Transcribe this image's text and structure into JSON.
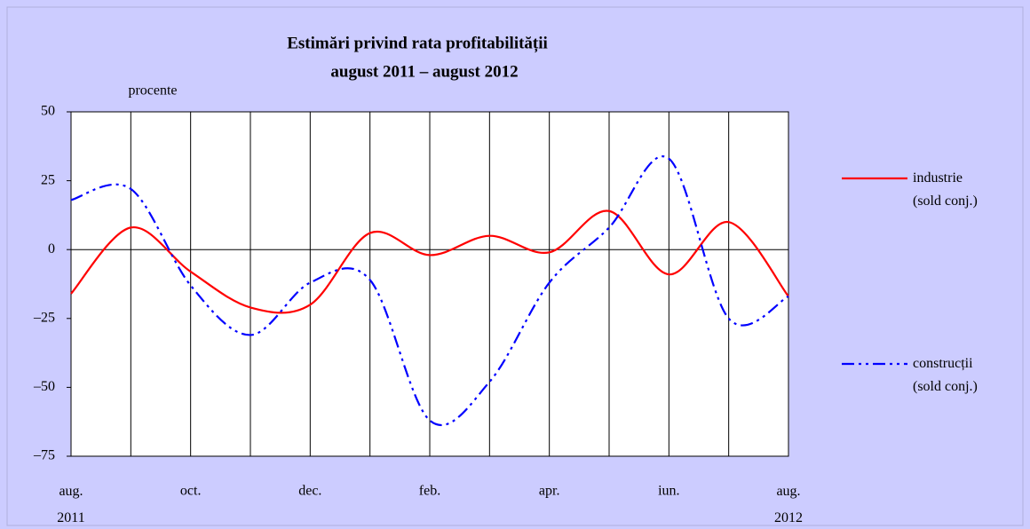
{
  "chart_data": {
    "type": "line",
    "title": "Estimări privind rata profitabilității",
    "subtitle": "august 2011 – august 2012",
    "y_label": "procente",
    "categories": [
      "aug. 2011",
      null,
      "oct.",
      null,
      "dec.",
      null,
      "feb.",
      null,
      "apr.",
      null,
      "iun.",
      null,
      "aug. 2012"
    ],
    "series": [
      {
        "name": "industrie (sold conj.)",
        "color": "#ff0000",
        "values": [
          -16,
          8,
          -8,
          -21,
          -20,
          6,
          -2,
          5,
          -1,
          14,
          -9,
          10,
          -17
        ]
      },
      {
        "name": "construcții (sold conj.)",
        "color": "#0000ff",
        "values": [
          18,
          22,
          -13,
          -31,
          -12,
          -11,
          -62,
          -48,
          -12,
          8,
          33,
          -25,
          -17
        ]
      }
    ],
    "ylim": [
      -75,
      50
    ],
    "yticks": [
      {
        "value": -75,
        "label": "–75"
      },
      {
        "value": -50,
        "label": "–50"
      },
      {
        "value": -25,
        "label": "–25"
      },
      0,
      25,
      50
    ],
    "grid": true
  }
}
